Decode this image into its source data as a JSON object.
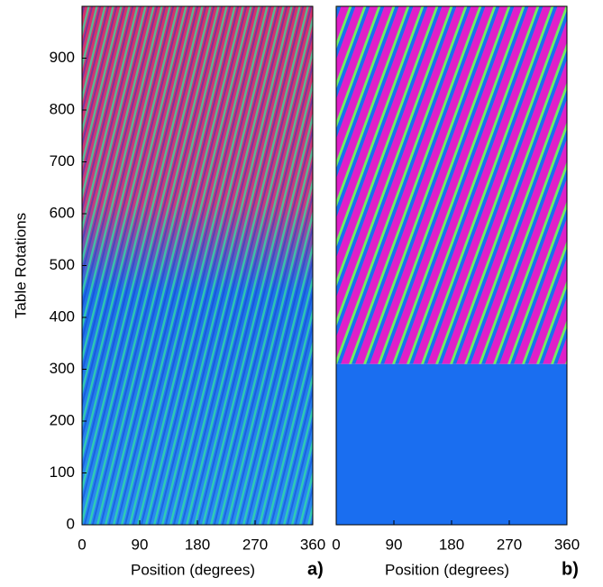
{
  "chart_data": [
    {
      "type": "heatmap",
      "xlabel": "Position (degrees)",
      "ylabel": "Table Rotations",
      "panel_label": "a)",
      "xlim": [
        0,
        360
      ],
      "xticks": [
        0,
        90,
        180,
        270,
        360
      ],
      "ylim": [
        0,
        1000
      ],
      "yticks": [
        0,
        100,
        200,
        300,
        400,
        500,
        600,
        700,
        800,
        900
      ]
    },
    {
      "type": "heatmap",
      "xlabel": "Position (degrees)",
      "panel_label": "b)",
      "xlim": [
        0,
        360
      ],
      "xticks": [
        0,
        90,
        180,
        270,
        360
      ],
      "ylim": [
        0,
        1000
      ]
    }
  ]
}
